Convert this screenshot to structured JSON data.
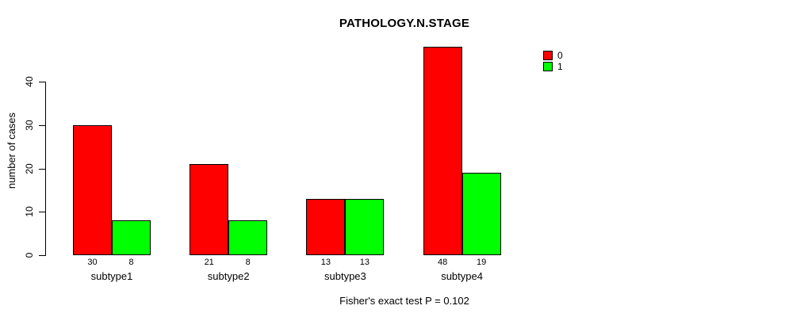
{
  "title": "PATHOLOGY.N.STAGE",
  "caption": "Fisher's exact test P = 0.102",
  "y_axis": {
    "label": "number of cases",
    "ticks": [
      0,
      10,
      20,
      30,
      40
    ]
  },
  "legend": {
    "position": "top-right",
    "items": [
      {
        "label": "0",
        "color": "#ff0000"
      },
      {
        "label": "1",
        "color": "#00ff00"
      }
    ]
  },
  "chart_data": {
    "type": "bar",
    "title": "PATHOLOGY.N.STAGE",
    "xlabel": "",
    "ylabel": "number of cases",
    "ylim": [
      0,
      40
    ],
    "grid": false,
    "legend_position": "top-right",
    "categories": [
      "subtype1",
      "subtype2",
      "subtype3",
      "subtype4"
    ],
    "series": [
      {
        "name": "0",
        "color": "#ff0000",
        "values": [
          30,
          21,
          13,
          48
        ]
      },
      {
        "name": "1",
        "color": "#00ff00",
        "values": [
          8,
          8,
          13,
          19
        ]
      }
    ],
    "bar_value_labels": [
      [
        "30",
        "8"
      ],
      [
        "21",
        "8"
      ],
      [
        "13",
        "13"
      ],
      [
        "48",
        "19"
      ]
    ],
    "annotation": "Fisher's exact test P = 0.102"
  }
}
